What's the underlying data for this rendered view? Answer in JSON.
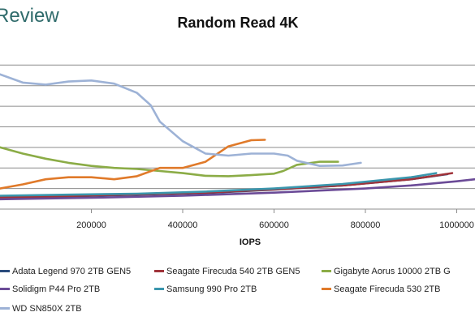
{
  "logo": {
    "text": "Review",
    "color": "#2f6b6b"
  },
  "chart_data": {
    "type": "line",
    "title": "Random Read 4K",
    "xlabel": "IOPS",
    "ylabel": "",
    "xlim": [
      0,
      1040000
    ],
    "ylim": [
      0,
      7.8
    ],
    "xticks": [
      200000,
      400000,
      600000,
      800000,
      1000000
    ],
    "xtick_labels": [
      "200000",
      "400000",
      "600000",
      "800000",
      "1000000"
    ],
    "yticks": [
      1,
      2,
      3,
      4,
      5,
      6,
      7
    ],
    "grid": true,
    "legend_position": "bottom",
    "series": [
      {
        "name": "Adata Legend 970 2TB GEN5",
        "color": "#2a4b7c",
        "x": [
          0,
          150000,
          300000,
          450000,
          600000,
          750000,
          900000,
          980000
        ],
        "y": [
          0.56,
          0.62,
          0.7,
          0.78,
          0.95,
          1.15,
          1.45,
          1.7
        ]
      },
      {
        "name": "Seagate Firecuda 540 2TB GEN5",
        "color": "#a0333a",
        "x": [
          0,
          150000,
          300000,
          450000,
          600000,
          750000,
          900000,
          990000
        ],
        "y": [
          0.58,
          0.64,
          0.72,
          0.8,
          0.96,
          1.15,
          1.45,
          1.75
        ]
      },
      {
        "name": "Gigabyte Aorus 10000 2TB G",
        "color": "#8bac46",
        "x": [
          0,
          50000,
          100000,
          150000,
          200000,
          250000,
          300000,
          350000,
          400000,
          450000,
          500000,
          550000,
          600000,
          620000,
          650000,
          700000,
          740000
        ],
        "y": [
          3.0,
          2.7,
          2.45,
          2.25,
          2.1,
          2.0,
          1.95,
          1.85,
          1.75,
          1.62,
          1.6,
          1.65,
          1.72,
          1.85,
          2.15,
          2.3,
          2.3
        ]
      },
      {
        "name": "Solidigm P44 Pro 2TB",
        "color": "#6b4b97",
        "x": [
          0,
          200000,
          400000,
          600000,
          800000,
          900000,
          1000000,
          1040000
        ],
        "y": [
          0.48,
          0.55,
          0.65,
          0.8,
          1.0,
          1.15,
          1.35,
          1.45
        ]
      },
      {
        "name": "Samsung 990 Pro 2TB",
        "color": "#3a96ad",
        "x": [
          0,
          150000,
          300000,
          450000,
          600000,
          750000,
          900000,
          955000
        ],
        "y": [
          0.65,
          0.7,
          0.75,
          0.85,
          1.0,
          1.22,
          1.55,
          1.75
        ]
      },
      {
        "name": "Seagate Firecuda 530 2TB",
        "color": "#e07a2a",
        "x": [
          0,
          50000,
          100000,
          150000,
          200000,
          250000,
          300000,
          350000,
          400000,
          450000,
          500000,
          550000,
          580000
        ],
        "y": [
          1.0,
          1.2,
          1.45,
          1.55,
          1.55,
          1.45,
          1.6,
          2.0,
          2.0,
          2.3,
          3.05,
          3.35,
          3.37
        ]
      },
      {
        "name": "WD SN850X 2TB",
        "color": "#9db2d6",
        "x": [
          0,
          50000,
          100000,
          150000,
          200000,
          250000,
          300000,
          330000,
          350000,
          400000,
          450000,
          500000,
          550000,
          600000,
          630000,
          650000,
          700000,
          750000,
          790000
        ],
        "y": [
          6.55,
          6.15,
          6.05,
          6.2,
          6.25,
          6.1,
          5.65,
          5.05,
          4.25,
          3.3,
          2.7,
          2.6,
          2.7,
          2.7,
          2.6,
          2.35,
          2.1,
          2.12,
          2.25
        ]
      }
    ]
  }
}
